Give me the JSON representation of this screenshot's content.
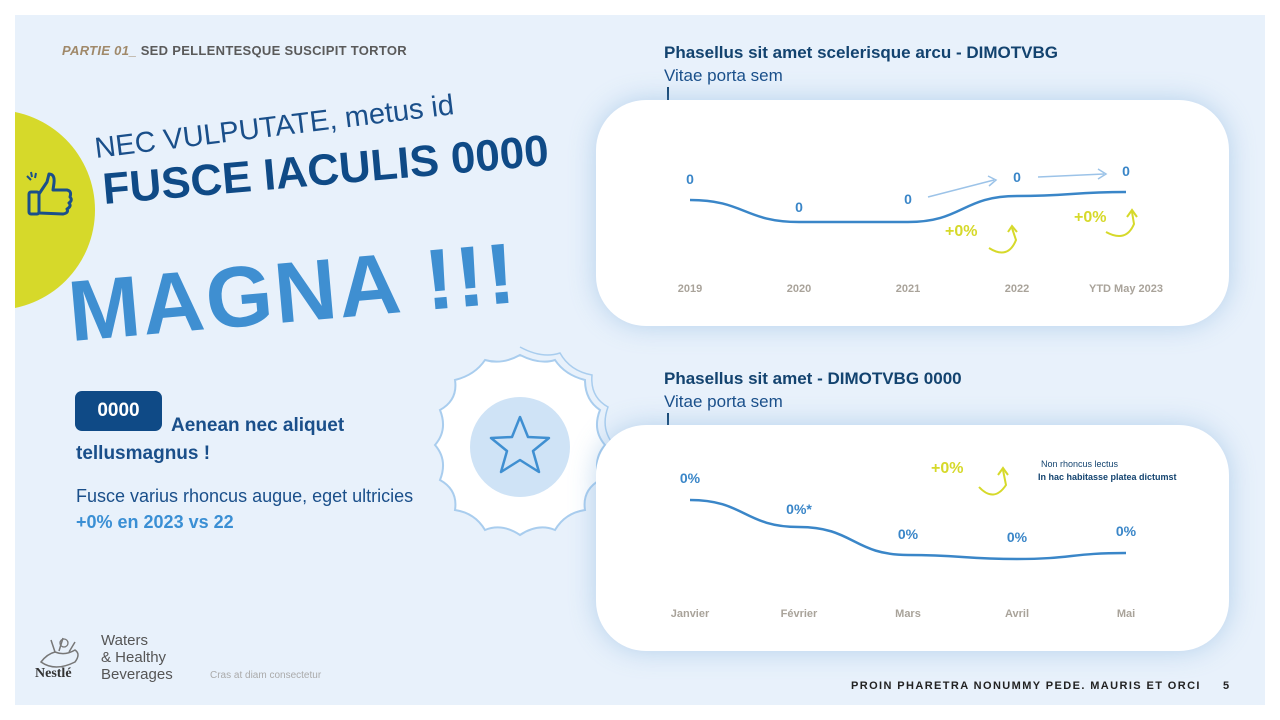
{
  "header": {
    "partie_label": "PARTIE 01_",
    "section_title": "SED PELLENTESQUE SUSCIPIT TORTOR"
  },
  "headline": {
    "line1": "NEC VULPUTATE, metus id",
    "line2": "FUSCE IACULIS 0000",
    "line3": "MAGNA !!!"
  },
  "kpi": {
    "badge_value": "0000",
    "tagline": "Aenean nec aliquet tellusmagnus !",
    "body": "Fusce varius rhoncus augue, eget ultricies",
    "growth": "+0% en 2023 vs 22"
  },
  "footer": {
    "tagline": "PROIN PHARETRA NONUMMY PEDE. MAURIS ET ORCI",
    "page_number": "5",
    "note": "Cras at diam consectetur"
  },
  "logo": {
    "brand": "Nestlé",
    "line1": "Waters",
    "line2": "& Healthy",
    "line3": "Beverages"
  },
  "colors": {
    "accent_yellow": "#d6d92a",
    "navy": "#0f4a86",
    "blue": "#3f8fd1",
    "line_blue": "#3a86c8",
    "background": "#e8f1fb"
  },
  "icons": {
    "thumb": "thumbs-up-icon",
    "star": "star-icon"
  },
  "chart_data": [
    {
      "type": "line",
      "title": "Phasellus sit amet scelerisque arcu - DIMOTVBG",
      "subtitle": "Vitae porta sem",
      "categories": [
        "2019",
        "2020",
        "2021",
        "2022",
        "YTD May 2023"
      ],
      "series": [
        {
          "values": [
            0,
            0,
            0,
            0,
            0
          ]
        }
      ],
      "data_labels": [
        "0",
        "0",
        "0",
        "0",
        "0"
      ],
      "annotations": [
        {
          "text": "+0%",
          "at": "2022"
        },
        {
          "text": "+0%",
          "at": "YTD May 2023"
        }
      ],
      "grid": false
    },
    {
      "type": "line",
      "title": "Phasellus sit amet - DIMOTVBG 0000",
      "subtitle": "Vitae porta sem",
      "categories": [
        "Janvier",
        "Février",
        "Mars",
        "Avril",
        "Mai"
      ],
      "series": [
        {
          "values": [
            0,
            0,
            0,
            0,
            0
          ]
        }
      ],
      "data_labels": [
        "0%",
        "0%*",
        "0%",
        "0%",
        "0%"
      ],
      "annotations": [
        {
          "text": "+0%"
        }
      ],
      "notes": [
        "Non rhoncus lectus",
        "In hac habitasse platea dictumst"
      ],
      "grid": false
    }
  ]
}
